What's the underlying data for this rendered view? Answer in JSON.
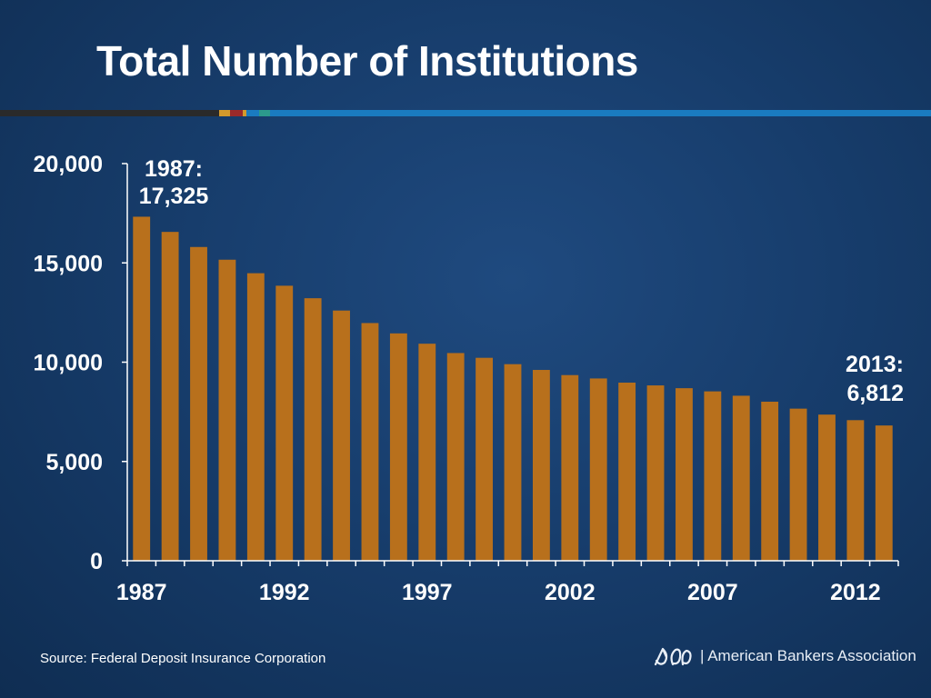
{
  "title": "Total Number of Institutions",
  "source": "Source:  Federal Deposit Insurance Corporation",
  "logo_text": "| American Bankers Association",
  "colors": {
    "bar": "#b8701c",
    "axis": "#ffffff",
    "rule_dark": "#2a2a2a",
    "rule_blue": "#1a7bc0",
    "rule_gold": "#d39a2c",
    "rule_red": "#9b2a2a",
    "rule_teal": "#2c9a8c"
  },
  "chart_data": {
    "type": "bar",
    "title": "Total Number of Institutions",
    "xlabel": "",
    "ylabel": "",
    "ylim": [
      0,
      20000
    ],
    "yticks": [
      0,
      5000,
      10000,
      15000,
      20000
    ],
    "ytick_labels": [
      "0",
      "5,000",
      "10,000",
      "15,000",
      "20,000"
    ],
    "xtick_labels": [
      "1987",
      "1992",
      "1997",
      "2002",
      "2007",
      "2012"
    ],
    "categories": [
      "1987",
      "1988",
      "1989",
      "1990",
      "1991",
      "1992",
      "1993",
      "1994",
      "1995",
      "1996",
      "1997",
      "1998",
      "1999",
      "2000",
      "2001",
      "2002",
      "2003",
      "2004",
      "2005",
      "2006",
      "2007",
      "2008",
      "2009",
      "2010",
      "2011",
      "2012",
      "2013"
    ],
    "values": [
      17325,
      16560,
      15800,
      15160,
      14480,
      13850,
      13220,
      12600,
      11970,
      11450,
      10930,
      10460,
      10220,
      9900,
      9610,
      9350,
      9180,
      8970,
      8830,
      8690,
      8530,
      8310,
      8010,
      7660,
      7360,
      7080,
      6812
    ],
    "annotations": [
      {
        "category": "1987",
        "line1": "1987:",
        "line2": "17,325"
      },
      {
        "category": "2013",
        "line1": "2013:",
        "line2": "6,812"
      }
    ],
    "grid": false,
    "legend": "none"
  }
}
